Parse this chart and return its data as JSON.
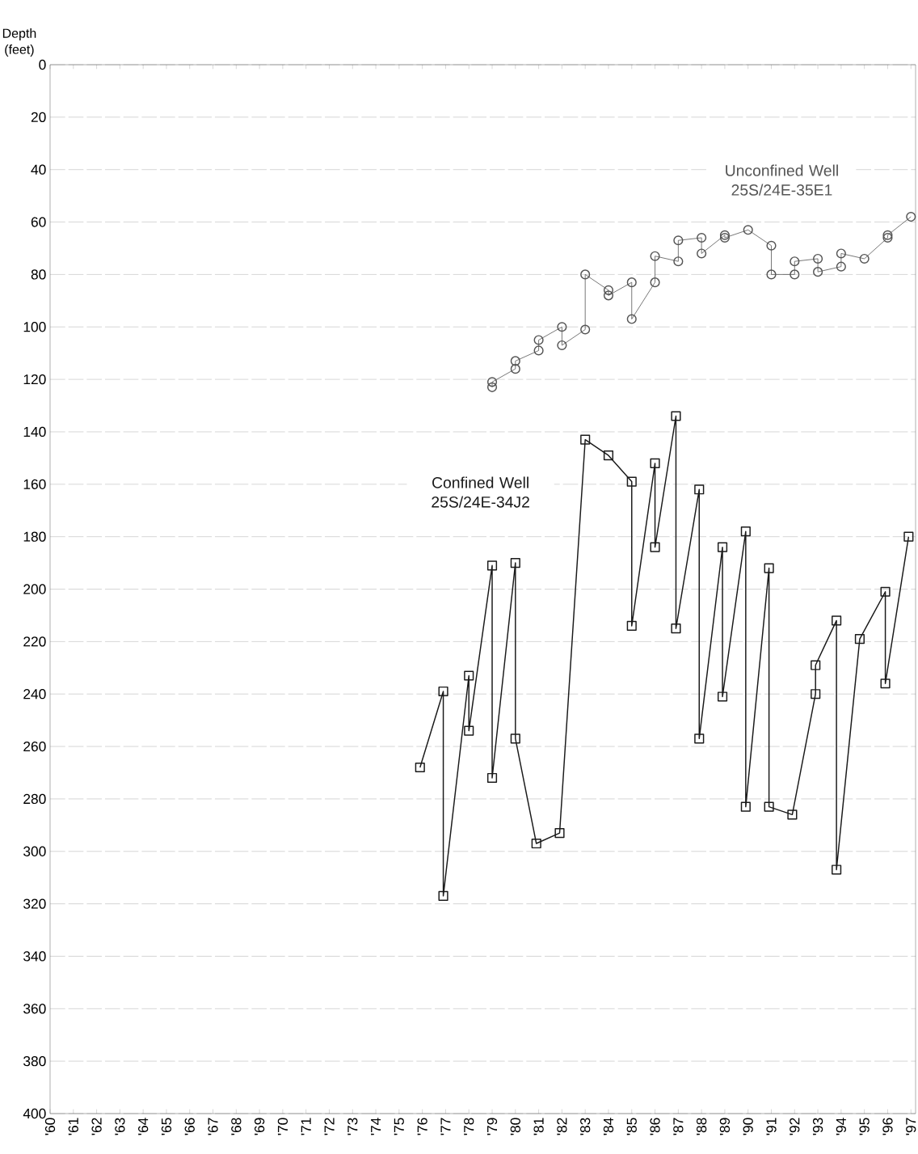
{
  "chart_data": {
    "type": "line",
    "ylabel": "Depth (feet)",
    "xlim": [
      1960,
      1997.2
    ],
    "ylim": [
      400,
      0
    ],
    "xticks": [
      {
        "value": 1960,
        "label": "'60"
      },
      {
        "value": 1961,
        "label": "'61"
      },
      {
        "value": 1962,
        "label": "'62"
      },
      {
        "value": 1963,
        "label": "'63"
      },
      {
        "value": 1964,
        "label": "'64"
      },
      {
        "value": 1965,
        "label": "'65"
      },
      {
        "value": 1966,
        "label": "'66"
      },
      {
        "value": 1967,
        "label": "'67"
      },
      {
        "value": 1968,
        "label": "'68"
      },
      {
        "value": 1969,
        "label": "'69"
      },
      {
        "value": 1970,
        "label": "'70"
      },
      {
        "value": 1971,
        "label": "'71"
      },
      {
        "value": 1972,
        "label": "'72"
      },
      {
        "value": 1973,
        "label": "'73"
      },
      {
        "value": 1974,
        "label": "'74"
      },
      {
        "value": 1975,
        "label": "'75"
      },
      {
        "value": 1976,
        "label": "'76"
      },
      {
        "value": 1977,
        "label": "'77"
      },
      {
        "value": 1978,
        "label": "'78"
      },
      {
        "value": 1979,
        "label": "'79"
      },
      {
        "value": 1980,
        "label": "'80"
      },
      {
        "value": 1981,
        "label": "'81"
      },
      {
        "value": 1982,
        "label": "'82"
      },
      {
        "value": 1983,
        "label": "'83"
      },
      {
        "value": 1984,
        "label": "'84"
      },
      {
        "value": 1985,
        "label": "'85"
      },
      {
        "value": 1986,
        "label": "'86"
      },
      {
        "value": 1987,
        "label": "'87"
      },
      {
        "value": 1988,
        "label": "'88"
      },
      {
        "value": 1989,
        "label": "'89"
      },
      {
        "value": 1990,
        "label": "'90"
      },
      {
        "value": 1991,
        "label": "'91"
      },
      {
        "value": 1992,
        "label": "'92"
      },
      {
        "value": 1993,
        "label": "'93"
      },
      {
        "value": 1994,
        "label": "'94"
      },
      {
        "value": 1995,
        "label": "'95"
      },
      {
        "value": 1996,
        "label": "'96"
      },
      {
        "value": 1997,
        "label": "'97"
      }
    ],
    "yticks": [
      0,
      20,
      40,
      60,
      80,
      100,
      120,
      140,
      160,
      180,
      200,
      220,
      240,
      260,
      280,
      300,
      320,
      340,
      360,
      380,
      400
    ],
    "grid": "y",
    "legend": false,
    "line_style": "solid",
    "series": [
      {
        "name": "Unconfined Well 25S/24E-35E1",
        "color": "#555555",
        "marker": "circle",
        "x": [
          1979,
          1979,
          1980,
          1980,
          1981,
          1981,
          1982,
          1982,
          1983,
          1983,
          1984,
          1984,
          1985,
          1985,
          1986,
          1986,
          1987,
          1987,
          1988,
          1988,
          1989,
          1989,
          1990,
          1991,
          1991,
          1992,
          1992,
          1993,
          1993,
          1994,
          1994,
          1995,
          1996,
          1996,
          1997
        ],
        "values": [
          123,
          121,
          116,
          113,
          109,
          105,
          100,
          107,
          101,
          80,
          86,
          88,
          83,
          97,
          83,
          73,
          75,
          67,
          66,
          72,
          65,
          66,
          63,
          69,
          80,
          80,
          75,
          74,
          79,
          77,
          72,
          74,
          66,
          65,
          58
        ]
      },
      {
        "name": "Confined Well 25S/24E-34J2",
        "color": "#1a1a1a",
        "marker": "square",
        "x": [
          1975.9,
          1976.9,
          1976.9,
          1978.0,
          1978.0,
          1979.0,
          1979.0,
          1980.0,
          1980.0,
          1980.9,
          1981.9,
          1983.0,
          1984.0,
          1985.0,
          1985.0,
          1986.0,
          1986.0,
          1986.9,
          1986.9,
          1987.9,
          1987.9,
          1988.9,
          1988.9,
          1989.9,
          1989.9,
          1990.9,
          1990.9,
          1991.9,
          1992.9,
          1992.9,
          1993.8,
          1993.8,
          1994.8,
          1995.9,
          1995.9,
          1996.9
        ],
        "values": [
          268,
          239,
          317,
          233,
          254,
          191,
          272,
          190,
          257,
          297,
          293,
          143,
          149,
          159,
          214,
          152,
          184,
          134,
          215,
          162,
          257,
          184,
          241,
          178,
          283,
          192,
          283,
          286,
          240,
          229,
          212,
          307,
          219,
          201,
          236,
          180
        ]
      }
    ]
  }
}
